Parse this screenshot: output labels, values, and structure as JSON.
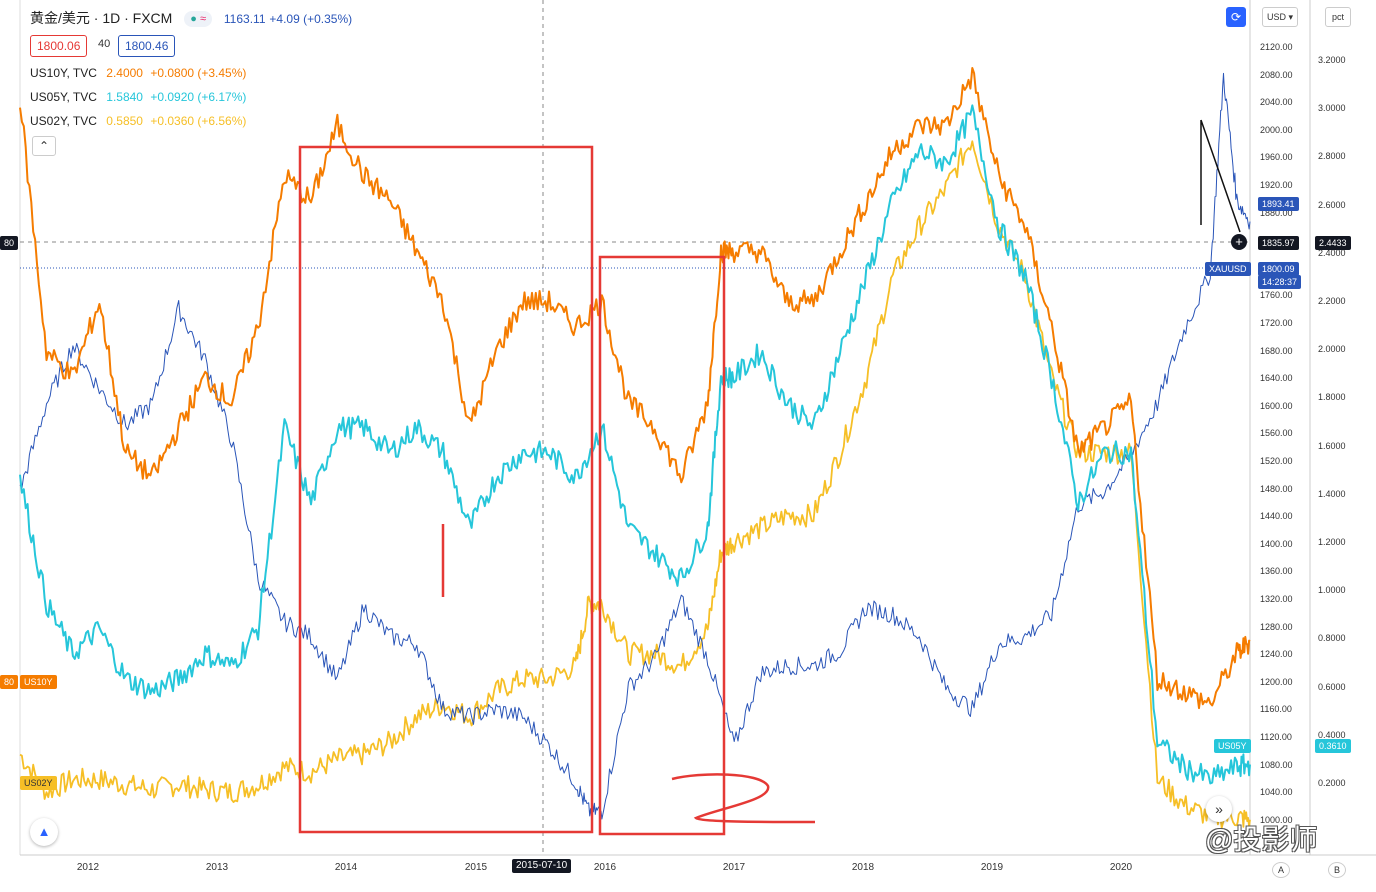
{
  "header": {
    "symbol_title": "黄金/美元 · 1D · FXCM",
    "quote": "1163.11",
    "change": "+4.09 (+0.35%)",
    "sell_price": "1800.06",
    "spread": "40",
    "buy_price": "1800.46",
    "currency_select": "USD",
    "unit_select": "pct"
  },
  "legend": [
    {
      "name": "US10Y, TVC",
      "value": "2.4000",
      "change": "+0.0800 (+3.45%)",
      "color": "#f57c00"
    },
    {
      "name": "US05Y, TVC",
      "value": "1.5840",
      "change": "+0.0920 (+6.17%)",
      "color": "#26c6da"
    },
    {
      "name": "US02Y, TVC",
      "value": "0.5850",
      "change": "+0.0360 (+6.56%)",
      "color": "#f6bf26"
    }
  ],
  "price_axis": [
    "2120.00",
    "2080.00",
    "2040.00",
    "2000.00",
    "1960.00",
    "1920.00",
    "1880.00",
    "1840.00",
    "1800.00",
    "1760.00",
    "1720.00",
    "1680.00",
    "1640.00",
    "1600.00",
    "1560.00",
    "1520.00",
    "1480.00",
    "1440.00",
    "1400.00",
    "1360.00",
    "1320.00",
    "1280.00",
    "1240.00",
    "1200.00",
    "1160.00",
    "1120.00",
    "1080.00",
    "1040.00",
    "1000.00"
  ],
  "pct_axis": [
    "3.2000",
    "3.0000",
    "2.8000",
    "2.6000",
    "2.4000",
    "2.2000",
    "2.0000",
    "1.8000",
    "1.6000",
    "1.4000",
    "1.2000",
    "1.0000",
    "0.8000",
    "0.6000",
    "0.4000",
    "0.2000"
  ],
  "time_axis": [
    "2012",
    "2013",
    "2014",
    "2015",
    "2015-07-10",
    "2016",
    "2017",
    "2018",
    "2019",
    "2020"
  ],
  "tags": {
    "xauusd_name": "XAUUSD",
    "xauusd_price": "1800.09",
    "xauusd_time": "14:28:37",
    "crosshair_price": "1835.97",
    "crosshair_pct": "2.4433",
    "us05y_label": "US05Y",
    "us05y_value": "0.3610",
    "us10y_label": "US10Y",
    "us02y_label": "US02Y",
    "gold_right": "1893.41",
    "left_80": "80"
  },
  "bottom_buttons": {
    "a": "A",
    "b": "B"
  },
  "watermark": "@投影师",
  "colors": {
    "gold": "#2a55b8",
    "us10y": "#f57c00",
    "us05y": "#26c6da",
    "us02y": "#f6bf26",
    "annotation": "#e53935"
  },
  "chart_data": {
    "type": "line",
    "x_range": [
      "2011-06",
      "2020-10"
    ],
    "series": [
      {
        "name": "XAUUSD",
        "axis": "price",
        "points": [
          [
            2011.6,
            1500
          ],
          [
            2011.8,
            1620
          ],
          [
            2012.0,
            1700
          ],
          [
            2012.2,
            1640
          ],
          [
            2012.4,
            1590
          ],
          [
            2012.6,
            1620
          ],
          [
            2012.8,
            1750
          ],
          [
            2013.0,
            1680
          ],
          [
            2013.2,
            1570
          ],
          [
            2013.4,
            1380
          ],
          [
            2013.6,
            1320
          ],
          [
            2013.8,
            1300
          ],
          [
            2014.0,
            1240
          ],
          [
            2014.2,
            1340
          ],
          [
            2014.4,
            1300
          ],
          [
            2014.6,
            1290
          ],
          [
            2014.8,
            1200
          ],
          [
            2015.0,
            1190
          ],
          [
            2015.2,
            1200
          ],
          [
            2015.4,
            1190
          ],
          [
            2015.6,
            1150
          ],
          [
            2015.8,
            1100
          ],
          [
            2015.9,
            1060
          ],
          [
            2016.0,
            1060
          ],
          [
            2016.2,
            1230
          ],
          [
            2016.4,
            1270
          ],
          [
            2016.6,
            1350
          ],
          [
            2016.8,
            1270
          ],
          [
            2017.0,
            1150
          ],
          [
            2017.2,
            1250
          ],
          [
            2017.4,
            1260
          ],
          [
            2017.6,
            1260
          ],
          [
            2017.8,
            1280
          ],
          [
            2018.0,
            1340
          ],
          [
            2018.2,
            1330
          ],
          [
            2018.4,
            1300
          ],
          [
            2018.6,
            1230
          ],
          [
            2018.8,
            1200
          ],
          [
            2019.0,
            1290
          ],
          [
            2019.2,
            1300
          ],
          [
            2019.4,
            1330
          ],
          [
            2019.6,
            1480
          ],
          [
            2019.8,
            1500
          ],
          [
            2020.0,
            1550
          ],
          [
            2020.2,
            1620
          ],
          [
            2020.4,
            1720
          ],
          [
            2020.6,
            1800
          ],
          [
            2020.7,
            2070
          ],
          [
            2020.8,
            1900
          ],
          [
            2020.9,
            1870
          ]
        ]
      },
      {
        "name": "US10Y",
        "axis": "pct",
        "points": [
          [
            2011.6,
            3.0
          ],
          [
            2011.8,
            2.0
          ],
          [
            2012.0,
            1.9
          ],
          [
            2012.2,
            2.2
          ],
          [
            2012.4,
            1.6
          ],
          [
            2012.6,
            1.5
          ],
          [
            2012.8,
            1.7
          ],
          [
            2013.0,
            1.9
          ],
          [
            2013.2,
            1.8
          ],
          [
            2013.4,
            2.1
          ],
          [
            2013.6,
            2.7
          ],
          [
            2013.8,
            2.6
          ],
          [
            2014.0,
            2.9
          ],
          [
            2014.2,
            2.7
          ],
          [
            2014.4,
            2.6
          ],
          [
            2014.6,
            2.4
          ],
          [
            2014.8,
            2.2
          ],
          [
            2015.0,
            1.7
          ],
          [
            2015.2,
            2.0
          ],
          [
            2015.4,
            2.2
          ],
          [
            2015.6,
            2.2
          ],
          [
            2015.8,
            2.1
          ],
          [
            2016.0,
            2.2
          ],
          [
            2016.2,
            1.8
          ],
          [
            2016.4,
            1.7
          ],
          [
            2016.6,
            1.5
          ],
          [
            2016.8,
            1.8
          ],
          [
            2016.9,
            2.4
          ],
          [
            2017.0,
            2.4
          ],
          [
            2017.2,
            2.4
          ],
          [
            2017.4,
            2.2
          ],
          [
            2017.6,
            2.2
          ],
          [
            2017.8,
            2.4
          ],
          [
            2018.0,
            2.6
          ],
          [
            2018.2,
            2.8
          ],
          [
            2018.4,
            2.9
          ],
          [
            2018.6,
            2.9
          ],
          [
            2018.8,
            3.1
          ],
          [
            2019.0,
            2.7
          ],
          [
            2019.2,
            2.5
          ],
          [
            2019.4,
            2.1
          ],
          [
            2019.6,
            1.6
          ],
          [
            2019.8,
            1.7
          ],
          [
            2020.0,
            1.8
          ],
          [
            2020.2,
            0.7
          ],
          [
            2020.4,
            0.65
          ],
          [
            2020.6,
            0.6
          ],
          [
            2020.8,
            0.8
          ],
          [
            2020.9,
            0.85
          ]
        ]
      },
      {
        "name": "US05Y",
        "axis": "pct",
        "points": [
          [
            2011.6,
            1.5
          ],
          [
            2011.8,
            1.0
          ],
          [
            2012.0,
            0.8
          ],
          [
            2012.2,
            0.9
          ],
          [
            2012.4,
            0.7
          ],
          [
            2012.6,
            0.65
          ],
          [
            2012.8,
            0.7
          ],
          [
            2013.0,
            0.8
          ],
          [
            2013.2,
            0.75
          ],
          [
            2013.4,
            0.9
          ],
          [
            2013.6,
            1.7
          ],
          [
            2013.8,
            1.4
          ],
          [
            2014.0,
            1.7
          ],
          [
            2014.2,
            1.7
          ],
          [
            2014.4,
            1.6
          ],
          [
            2014.6,
            1.7
          ],
          [
            2014.8,
            1.6
          ],
          [
            2015.0,
            1.3
          ],
          [
            2015.2,
            1.5
          ],
          [
            2015.4,
            1.6
          ],
          [
            2015.6,
            1.6
          ],
          [
            2015.8,
            1.5
          ],
          [
            2016.0,
            1.7
          ],
          [
            2016.2,
            1.3
          ],
          [
            2016.4,
            1.2
          ],
          [
            2016.6,
            1.1
          ],
          [
            2016.8,
            1.3
          ],
          [
            2016.9,
            1.9
          ],
          [
            2017.0,
            1.9
          ],
          [
            2017.2,
            2.0
          ],
          [
            2017.4,
            1.8
          ],
          [
            2017.6,
            1.7
          ],
          [
            2017.8,
            2.0
          ],
          [
            2018.0,
            2.3
          ],
          [
            2018.2,
            2.6
          ],
          [
            2018.4,
            2.8
          ],
          [
            2018.6,
            2.75
          ],
          [
            2018.8,
            2.95
          ],
          [
            2019.0,
            2.5
          ],
          [
            2019.2,
            2.3
          ],
          [
            2019.4,
            1.9
          ],
          [
            2019.6,
            1.4
          ],
          [
            2019.8,
            1.6
          ],
          [
            2020.0,
            1.6
          ],
          [
            2020.2,
            0.45
          ],
          [
            2020.4,
            0.35
          ],
          [
            2020.6,
            0.3
          ],
          [
            2020.8,
            0.35
          ],
          [
            2020.9,
            0.36
          ]
        ]
      },
      {
        "name": "US02Y",
        "axis": "pct",
        "points": [
          [
            2011.6,
            0.4
          ],
          [
            2011.8,
            0.25
          ],
          [
            2012.0,
            0.3
          ],
          [
            2012.2,
            0.3
          ],
          [
            2012.4,
            0.28
          ],
          [
            2012.6,
            0.26
          ],
          [
            2012.8,
            0.28
          ],
          [
            2013.0,
            0.26
          ],
          [
            2013.2,
            0.25
          ],
          [
            2013.4,
            0.28
          ],
          [
            2013.6,
            0.35
          ],
          [
            2013.8,
            0.33
          ],
          [
            2014.0,
            0.38
          ],
          [
            2014.2,
            0.4
          ],
          [
            2014.4,
            0.45
          ],
          [
            2014.6,
            0.55
          ],
          [
            2014.8,
            0.6
          ],
          [
            2015.0,
            0.55
          ],
          [
            2015.2,
            0.65
          ],
          [
            2015.4,
            0.7
          ],
          [
            2015.6,
            0.7
          ],
          [
            2015.8,
            0.75
          ],
          [
            2015.9,
            1.0
          ],
          [
            2016.0,
            1.0
          ],
          [
            2016.2,
            0.8
          ],
          [
            2016.4,
            0.8
          ],
          [
            2016.6,
            0.75
          ],
          [
            2016.8,
            0.9
          ],
          [
            2016.9,
            1.2
          ],
          [
            2017.0,
            1.25
          ],
          [
            2017.2,
            1.3
          ],
          [
            2017.4,
            1.35
          ],
          [
            2017.6,
            1.35
          ],
          [
            2017.8,
            1.6
          ],
          [
            2018.0,
            1.9
          ],
          [
            2018.2,
            2.3
          ],
          [
            2018.4,
            2.5
          ],
          [
            2018.6,
            2.65
          ],
          [
            2018.8,
            2.85
          ],
          [
            2019.0,
            2.5
          ],
          [
            2019.2,
            2.3
          ],
          [
            2019.4,
            1.9
          ],
          [
            2019.6,
            1.6
          ],
          [
            2019.8,
            1.6
          ],
          [
            2020.0,
            1.6
          ],
          [
            2020.2,
            0.3
          ],
          [
            2020.4,
            0.2
          ],
          [
            2020.6,
            0.15
          ],
          [
            2020.8,
            0.15
          ],
          [
            2020.9,
            0.14
          ]
        ]
      }
    ],
    "price_range": [
      1000,
      2140
    ],
    "pct_range": [
      0.0,
      3.3
    ],
    "grid": false
  }
}
